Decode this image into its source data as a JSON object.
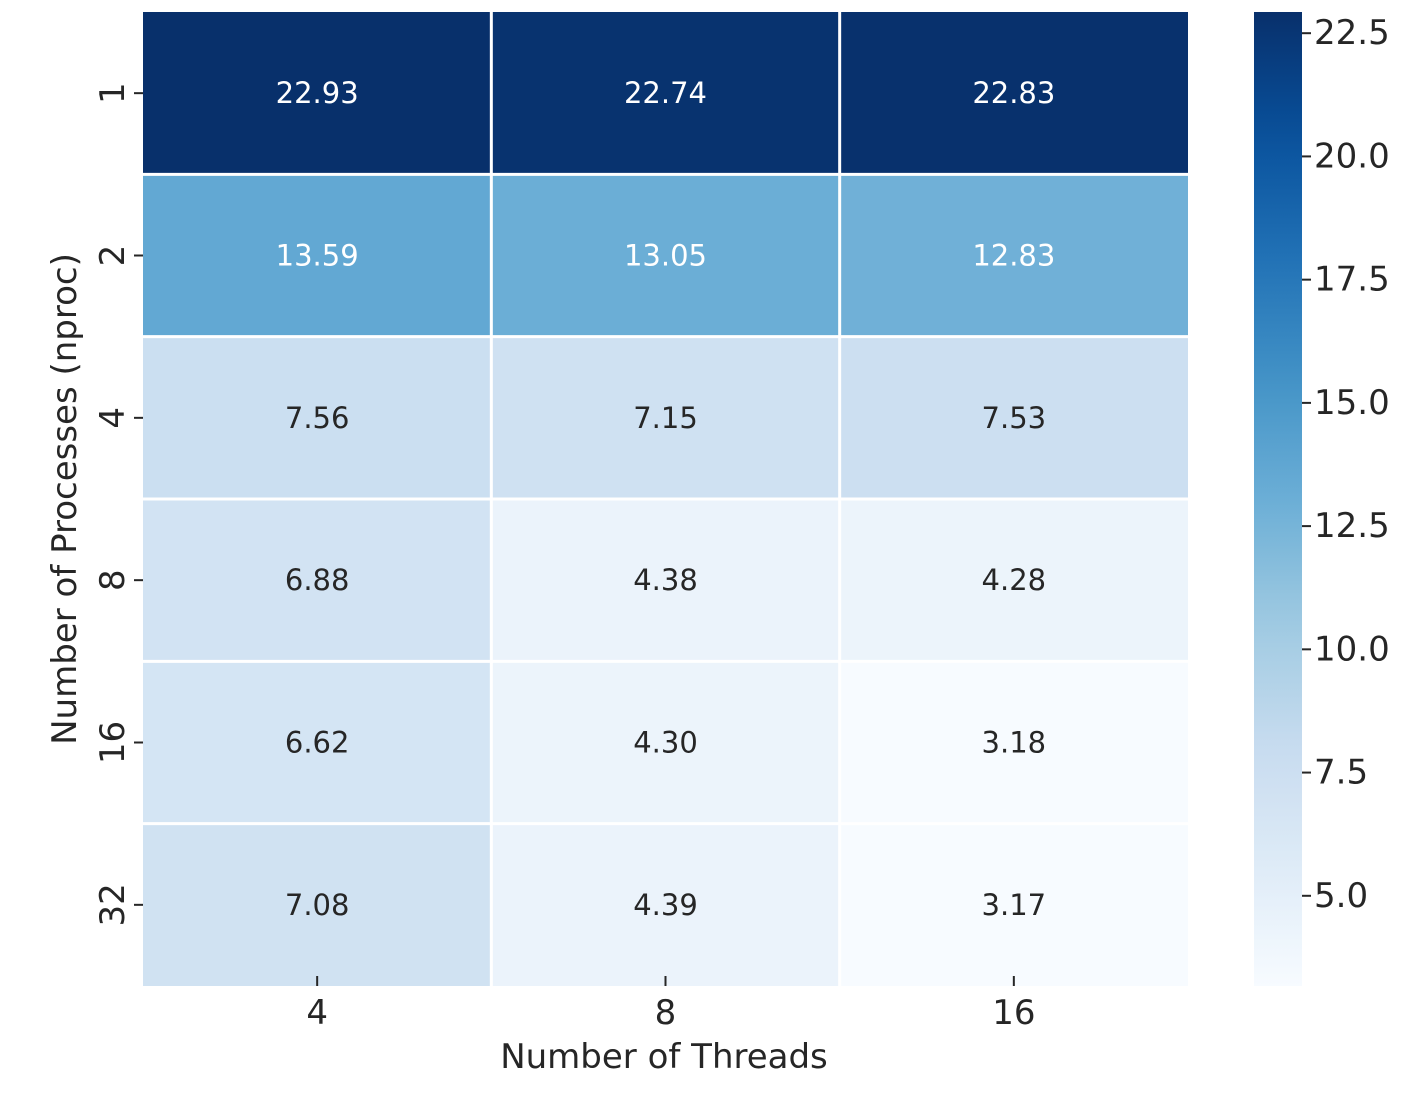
{
  "chart_data": {
    "type": "heatmap",
    "title": "",
    "xlabel": "Number of Threads",
    "ylabel": "Number of Processes (nproc)",
    "x_categories": [
      "4",
      "8",
      "16"
    ],
    "y_categories": [
      "1",
      "2",
      "4",
      "8",
      "16",
      "32"
    ],
    "values": [
      [
        22.93,
        22.74,
        22.83
      ],
      [
        13.59,
        13.05,
        12.83
      ],
      [
        7.56,
        7.15,
        7.53
      ],
      [
        6.88,
        4.38,
        4.28
      ],
      [
        6.62,
        4.3,
        3.18
      ],
      [
        7.08,
        4.39,
        3.17
      ]
    ],
    "cell_labels": [
      [
        "22.93",
        "22.74",
        "22.83"
      ],
      [
        "13.59",
        "13.05",
        "12.83"
      ],
      [
        "7.56",
        "7.15",
        "7.53"
      ],
      [
        "6.88",
        "4.38",
        "4.28"
      ],
      [
        "6.62",
        "4.30",
        "3.18"
      ],
      [
        "7.08",
        "4.39",
        "3.17"
      ]
    ],
    "colormap": "Blues",
    "colorbar": {
      "range": [
        3.17,
        22.93
      ],
      "ticks": [
        5.0,
        7.5,
        10.0,
        12.5,
        15.0,
        17.5,
        20.0,
        22.5
      ],
      "tick_labels": [
        "5.0",
        "7.5",
        "10.0",
        "12.5",
        "15.0",
        "17.5",
        "20.0",
        "22.5"
      ]
    },
    "grid": false,
    "cell_border_color": "#ffffff"
  }
}
